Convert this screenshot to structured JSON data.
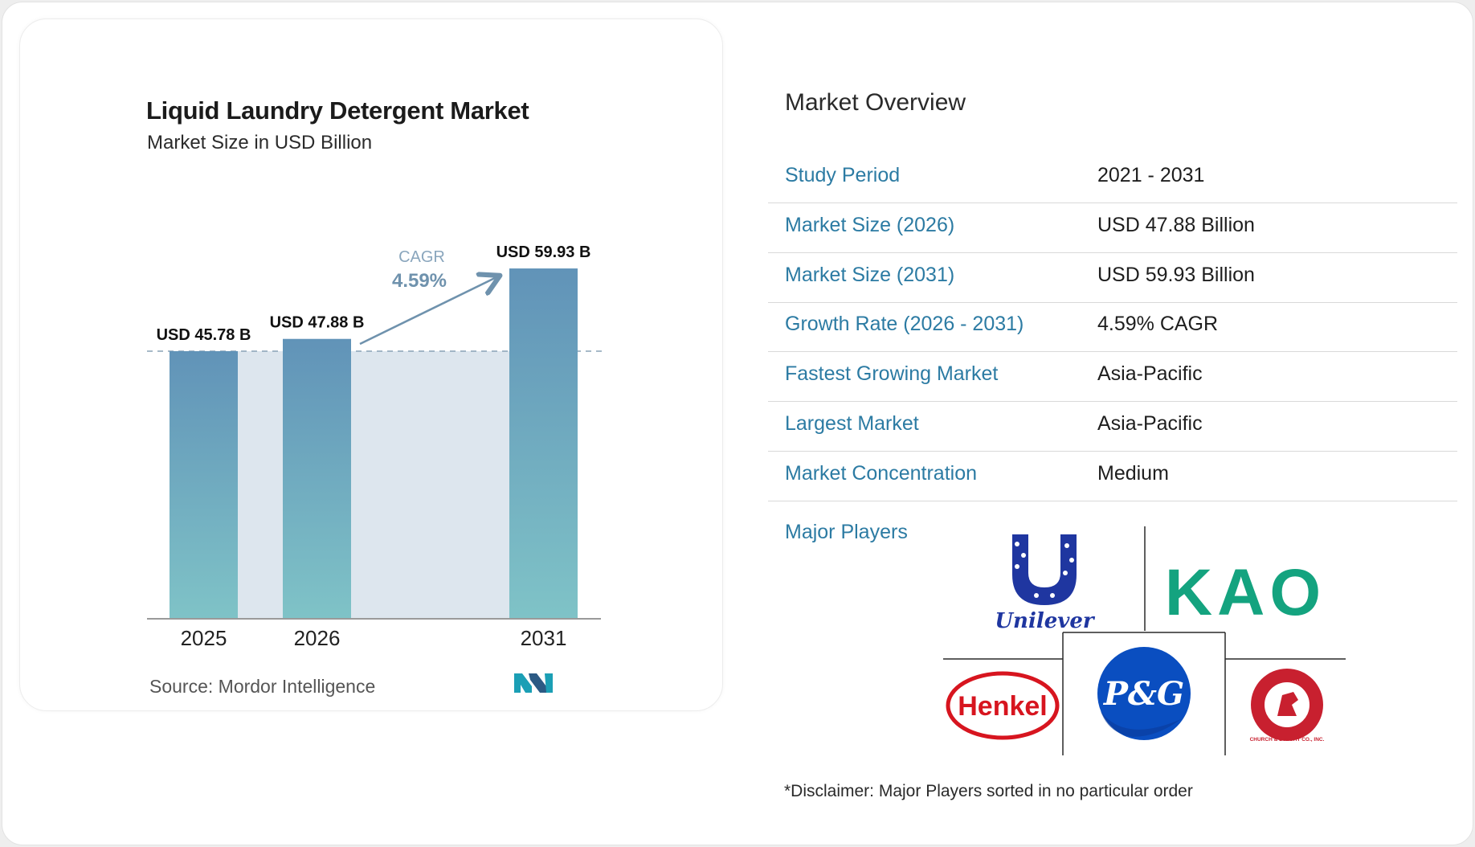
{
  "chart_data": {
    "type": "bar",
    "title": "Liquid Laundry Detergent Market",
    "subtitle": "Market Size in USD Billion",
    "categories": [
      "2025",
      "2026",
      "2031"
    ],
    "values": [
      45.78,
      47.88,
      59.93
    ],
    "value_labels": [
      "USD 45.78 B",
      "USD 47.88 B",
      "USD 59.93 B"
    ],
    "cagr_label": "CAGR",
    "cagr_value": "4.59%",
    "bar_color_top": "#6193b8",
    "bar_color_bottom": "#7fc3c7",
    "area_color": "#dde6ee",
    "source": "Source: Mordor Intelligence"
  },
  "overview": {
    "title": "Market Overview",
    "rows": [
      {
        "key": "Study Period",
        "value": "2021 - 2031"
      },
      {
        "key": "Market Size (2026)",
        "value": "USD 47.88 Billion"
      },
      {
        "key": "Market Size (2031)",
        "value": "USD 59.93 Billion"
      },
      {
        "key": "Growth Rate (2026 - 2031)",
        "value": "4.59% CAGR"
      },
      {
        "key": "Fastest Growing Market",
        "value": "Asia-Pacific"
      },
      {
        "key": "Largest Market",
        "value": "Asia-Pacific"
      },
      {
        "key": "Market Concentration",
        "value": "Medium"
      }
    ],
    "players_label": "Major Players",
    "players": [
      {
        "name": "Unilever",
        "logo_text": "Unilever",
        "color": "#1f36a0"
      },
      {
        "name": "Kao",
        "logo_text": "KAO",
        "color": "#14a37f"
      },
      {
        "name": "Henkel",
        "logo_text": "Henkel",
        "color": "#d7151f"
      },
      {
        "name": "P&G",
        "logo_text": "P&G",
        "color": "#0a4ec0"
      },
      {
        "name": "Church & Dwight",
        "logo_text": "CHURCH & DWIGHT CO., INC.",
        "color": "#c8202f"
      }
    ],
    "disclaimer": "*Disclaimer: Major Players sorted in no particular order"
  }
}
